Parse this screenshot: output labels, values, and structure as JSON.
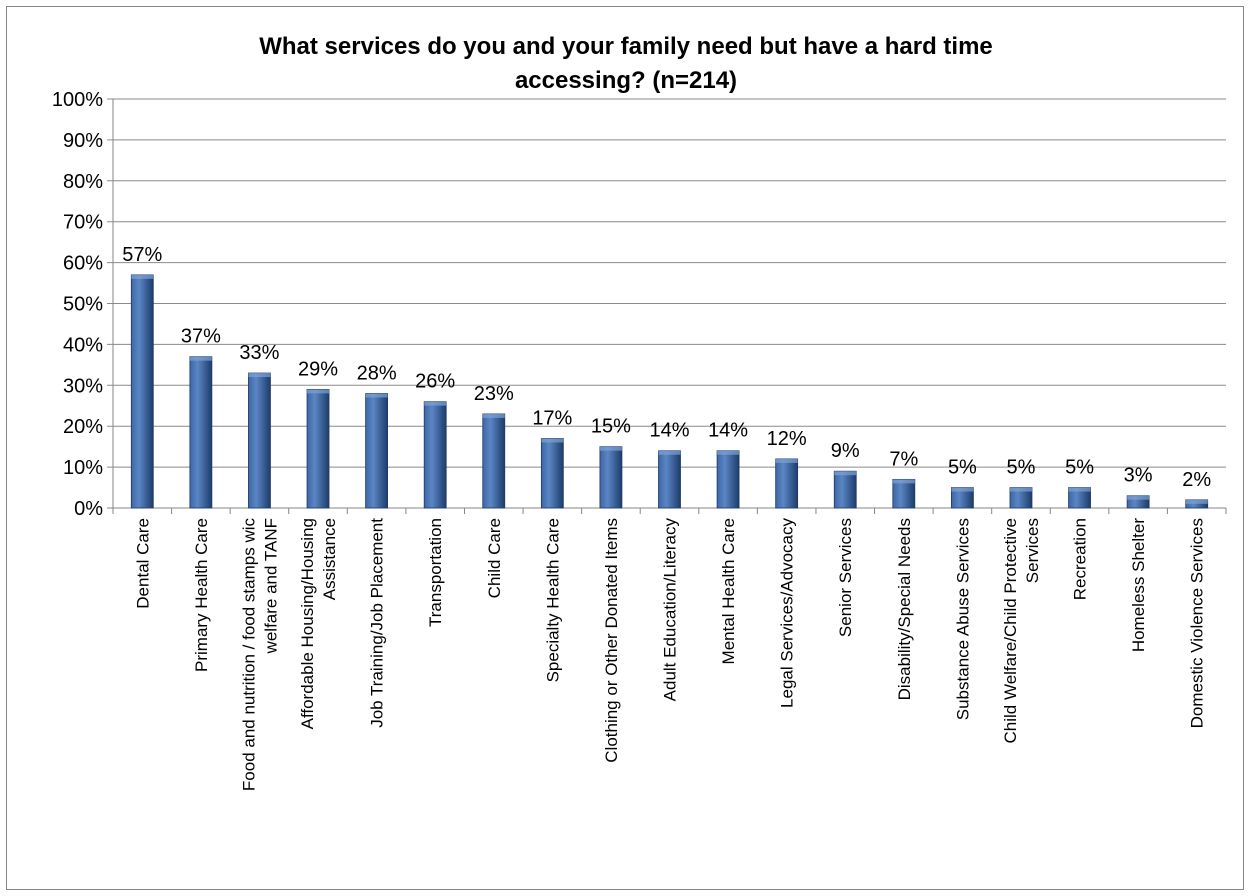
{
  "chart_data": {
    "type": "bar",
    "title_lines": [
      "What services do you and your family need but have a hard time",
      "accessing? (n=214)"
    ],
    "categories": [
      [
        "Dental Care"
      ],
      [
        "Primary Health Care"
      ],
      [
        "Food and nutrition / food stamps wic",
        "welfare and TANF"
      ],
      [
        "Affordable Housing/Housing",
        "Assistance"
      ],
      [
        "Job Training/Job Placement"
      ],
      [
        "Transportation"
      ],
      [
        "Child Care"
      ],
      [
        "Specialty Health Care"
      ],
      [
        "Clothing or Other Donated Items"
      ],
      [
        "Adult Education/Literacy"
      ],
      [
        "Mental Health Care"
      ],
      [
        "Legal Services/Advocacy"
      ],
      [
        "Senior Services"
      ],
      [
        "Disability/Special Needs"
      ],
      [
        "Substance Abuse Services"
      ],
      [
        "Child Welfare/Child Protective",
        "Services"
      ],
      [
        "Recreation"
      ],
      [
        "Homeless Shelter"
      ],
      [
        "Domestic Violence Services"
      ]
    ],
    "values": [
      57,
      37,
      33,
      29,
      28,
      26,
      23,
      17,
      15,
      14,
      14,
      12,
      9,
      7,
      5,
      5,
      5,
      3,
      2
    ],
    "data_labels": [
      "57%",
      "37%",
      "33%",
      "29%",
      "28%",
      "26%",
      "23%",
      "17%",
      "15%",
      "14%",
      "14%",
      "12%",
      "9%",
      "7%",
      "5%",
      "5%",
      "5%",
      "3%",
      "2%"
    ],
    "ylim": [
      0,
      100
    ],
    "yticks": [
      "0%",
      "10%",
      "20%",
      "30%",
      "40%",
      "50%",
      "60%",
      "70%",
      "80%",
      "90%",
      "100%"
    ],
    "grid": true,
    "bar_color": "#2a4d84"
  }
}
